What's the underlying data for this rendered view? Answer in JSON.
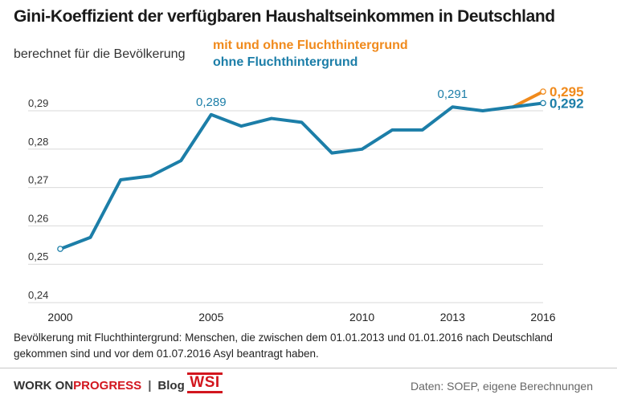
{
  "header": {
    "title": "Gini-Koeffizient der verfügbaren Haushaltseinkommen in Deutschland",
    "subtitle": "berechnet für die Bevölkerung",
    "legend_a": "mit und ohne Fluchthintergrund",
    "legend_b": "ohne Fluchthintergrund"
  },
  "colors": {
    "with_refugees": "#f08a1c",
    "without_refugees": "#1c7ea8",
    "grid": "#d9d9d9",
    "axis_text": "#333333"
  },
  "chart_data": {
    "type": "line",
    "title": "Gini-Koeffizient der verfügbaren Haushaltseinkommen in Deutschland",
    "subtitle": "berechnet für die Bevölkerung",
    "xlabel": "",
    "ylabel": "",
    "x_ticks": [
      "2000",
      "2005",
      "2010",
      "2013",
      "2016"
    ],
    "x_tick_values": [
      2000,
      2005,
      2010,
      2013,
      2016
    ],
    "y_ticks": [
      "0,24",
      "0,25",
      "0,26",
      "0,27",
      "0,28",
      "0,29"
    ],
    "y_tick_values": [
      0.24,
      0.25,
      0.26,
      0.27,
      0.28,
      0.29
    ],
    "xlim": [
      2000,
      2016
    ],
    "ylim": [
      0.24,
      0.293
    ],
    "grid": "horizontal",
    "legend": "top-left",
    "series": [
      {
        "name": "ohne Fluchthintergrund",
        "color": "#1c7ea8",
        "x": [
          2000,
          2001,
          2002,
          2003,
          2004,
          2005,
          2006,
          2007,
          2008,
          2009,
          2010,
          2011,
          2012,
          2013,
          2014,
          2015,
          2016
        ],
        "y": [
          0.254,
          0.257,
          0.272,
          0.273,
          0.277,
          0.289,
          0.286,
          0.288,
          0.287,
          0.279,
          0.28,
          0.285,
          0.285,
          0.291,
          0.29,
          0.291,
          0.292
        ]
      },
      {
        "name": "mit und ohne Fluchthintergrund",
        "color": "#f08a1c",
        "x": [
          2015,
          2016
        ],
        "y": [
          0.291,
          0.295
        ]
      }
    ],
    "annotations": [
      {
        "x": 2005,
        "y": 0.289,
        "text": "0,289",
        "series": "ohne Fluchthintergrund"
      },
      {
        "x": 2013,
        "y": 0.291,
        "text": "0,291",
        "series": "ohne Fluchthintergrund"
      },
      {
        "x": 2016,
        "y": 0.295,
        "text": "0,295",
        "series": "mit und ohne Fluchthintergrund"
      },
      {
        "x": 2016,
        "y": 0.292,
        "text": "0,292",
        "series": "ohne Fluchthintergrund"
      }
    ]
  },
  "footnote": "Bevölkerung mit Fluchthintergrund: Menschen, die zwischen dem 01.01.2013 und 01.01.2016 nach Deutschland gekommen sind und vor dem 01.07.2016 Asyl beantragt haben.",
  "footer": {
    "brand_part1": "WORK ON ",
    "brand_part2": "PROGRESS",
    "separator": "|",
    "blog": "Blog",
    "logo_text": "WSI",
    "source": "Daten: SOEP, eigene Berechnungen"
  }
}
